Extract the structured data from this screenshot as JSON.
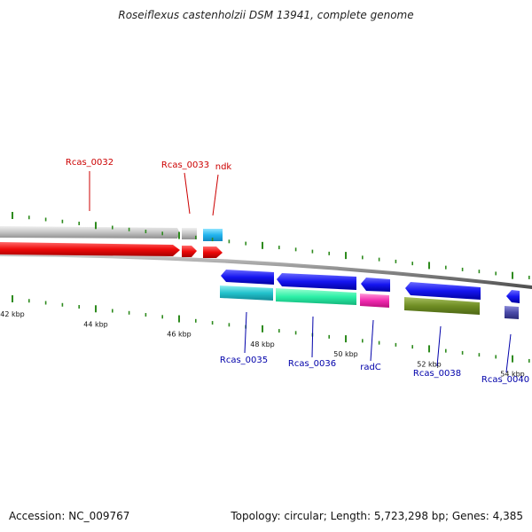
{
  "title": "Roseiflexus castenholzii DSM 13941, complete genome",
  "footer": {
    "accession": "Accession: NC_009767",
    "summary": "Topology: circular; Length: 5,723,298 bp; Genes: 4,385"
  },
  "colors": {
    "background": "#ffffff",
    "backbone": "#8a8a8a",
    "tick": "#2e8b1e",
    "forward_label": "#cc0000",
    "reverse_label": "#0000aa",
    "rev_cds": "#1a1aee",
    "fwd_cds_red": "#ee1111",
    "fwd_gene_gray": "#c8c8c8",
    "fwd_gene_cyan": "#22b4ee"
  },
  "axis": {
    "ticks_kbp": [
      42,
      44,
      46,
      48,
      50,
      52,
      54
    ],
    "labels": [
      "42 kbp",
      "44 kbp",
      "46 kbp",
      "48 kbp",
      "50 kbp",
      "52 kbp",
      "54 kbp"
    ]
  },
  "forward_features": [
    {
      "name": "Rcas_0032",
      "labeled": true
    },
    {
      "name": "Rcas_0033",
      "labeled": true
    },
    {
      "name": "ndk",
      "labeled": true
    }
  ],
  "reverse_features": [
    {
      "name": "Rcas_0035",
      "labeled": true
    },
    {
      "name": "Rcas_0036",
      "labeled": true
    },
    {
      "name": "radC",
      "labeled": true
    },
    {
      "name": "Rcas_0038",
      "labeled": true
    },
    {
      "name": "Rcas_0040",
      "labeled": true
    }
  ]
}
